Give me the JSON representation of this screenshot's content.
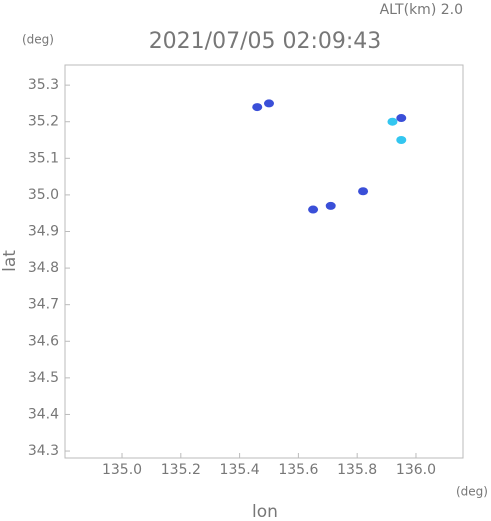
{
  "chart_data": {
    "type": "scatter",
    "title": "2021/07/05 02:09:43",
    "subtitle": "ALT(km) 2.0",
    "x_label": "lon",
    "y_label": "lat",
    "x_unit": "(deg)",
    "y_unit": "(deg)",
    "xlim": [
      134.806,
      136.16
    ],
    "ylim": [
      34.281,
      35.355
    ],
    "xticks": [
      {
        "value": 135.0,
        "label": "135.0"
      },
      135.2,
      135.4,
      135.6,
      135.8,
      {
        "value": 136.0,
        "label": "136.0"
      }
    ],
    "yticks": [
      34.3,
      34.4,
      34.5,
      34.6,
      34.7,
      34.8,
      34.9,
      {
        "value": 35.0,
        "label": "35.0"
      },
      35.1,
      35.2,
      35.3
    ],
    "series": [
      {
        "color": "#3a4fd8",
        "x": [
          135.46,
          135.5,
          135.95,
          135.82,
          135.71,
          135.65
        ],
        "values": [
          35.24,
          35.25,
          35.21,
          35.01,
          34.97,
          34.96
        ]
      },
      {
        "color": "#33c6f0",
        "x": [
          135.92,
          135.95
        ],
        "values": [
          35.2,
          35.15
        ]
      }
    ]
  }
}
